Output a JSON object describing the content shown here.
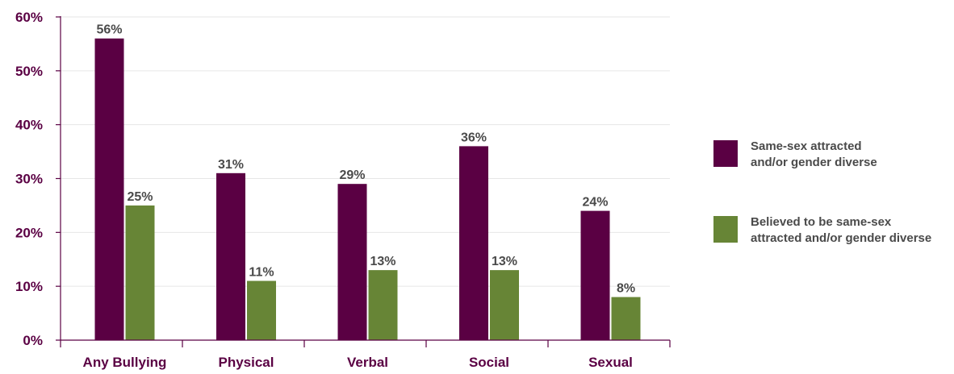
{
  "colors": {
    "series_1": "#5a0043",
    "series_2": "#678536",
    "axis": "#5a0043",
    "grid": "#e6e6e6",
    "tick_label": "#5a0043",
    "data_label": "#4a4a4a"
  },
  "chart_data": {
    "type": "bar",
    "categories": [
      "Any Bullying",
      "Physical",
      "Verbal",
      "Social",
      "Sexual"
    ],
    "series": [
      {
        "name": "Same-sex attracted\nand/or gender diverse",
        "values": [
          56,
          31,
          29,
          36,
          24
        ],
        "labels": [
          "56%",
          "31%",
          "29%",
          "36%",
          "24%"
        ],
        "color": "#5a0043"
      },
      {
        "name": "Believed to be same-sex\nattracted and/or gender diverse",
        "values": [
          25,
          11,
          13,
          13,
          8
        ],
        "labels": [
          "25%",
          "11%",
          "13%",
          "13%",
          "8%"
        ],
        "color": "#678536"
      }
    ],
    "y_ticks": [
      "0%",
      "10%",
      "20%",
      "30%",
      "40%",
      "50%",
      "60%"
    ],
    "ylim": [
      0,
      60
    ],
    "grid": true,
    "legend_position": "right"
  }
}
